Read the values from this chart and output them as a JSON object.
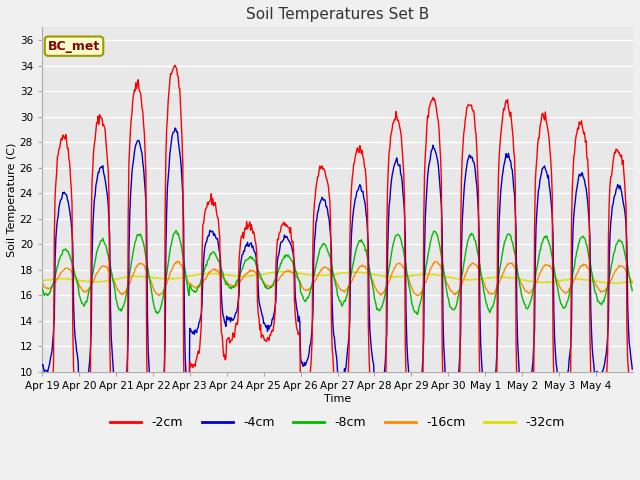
{
  "title": "Soil Temperatures Set B",
  "xlabel": "Time",
  "ylabel": "Soil Temperature (C)",
  "ylim": [
    10,
    37
  ],
  "yticks": [
    10,
    12,
    14,
    16,
    18,
    20,
    22,
    24,
    26,
    28,
    30,
    32,
    34,
    36
  ],
  "annotation": "BC_met",
  "fig_bg": "#f0f0f0",
  "plot_bg": "#e8e8e8",
  "series_colors": {
    "-2cm": "#ff0000",
    "-4cm": "#0000cc",
    "-8cm": "#00bb00",
    "-16cm": "#ff8800",
    "-32cm": "#dddd00"
  },
  "xtick_labels": [
    "Apr 19",
    "Apr 20",
    "Apr 21",
    "Apr 22",
    "Apr 23",
    "Apr 24",
    "Apr 25",
    "Apr 26",
    "Apr 27",
    "Apr 28",
    "Apr 29",
    "Apr 30",
    "May 1",
    "May 2",
    "May 3",
    "May 4"
  ],
  "n_days": 16,
  "samples_per_day": 48,
  "base_temp": 17.0,
  "amp2": [
    11.5,
    13.0,
    15.5,
    17.0,
    6.5,
    4.5,
    4.5,
    9.0,
    10.5,
    13.0,
    14.5,
    14.0,
    14.0,
    13.0,
    12.5,
    10.5
  ],
  "amp4": [
    7.0,
    9.0,
    11.0,
    12.0,
    4.0,
    3.0,
    3.5,
    6.5,
    7.5,
    9.5,
    10.5,
    10.0,
    10.0,
    9.0,
    8.5,
    7.5
  ],
  "amp8": [
    1.8,
    2.5,
    3.0,
    3.2,
    1.5,
    1.2,
    1.3,
    2.2,
    2.5,
    3.0,
    3.2,
    3.0,
    3.0,
    2.8,
    2.8,
    2.5
  ],
  "amp16": [
    0.8,
    1.0,
    1.2,
    1.3,
    0.7,
    0.6,
    0.6,
    0.9,
    1.0,
    1.2,
    1.3,
    1.2,
    1.2,
    1.1,
    1.1,
    1.0
  ],
  "amp32": 0.3,
  "peak_hour_2": 0.58,
  "peak_hour_4": 0.6,
  "peak_hour_8": 0.63,
  "peak_hour_16": 0.67,
  "peak_hour_32": 0.72,
  "sharpness_2": 3.5,
  "title_fontsize": 11,
  "legend_fontsize": 9,
  "tick_fontsize": 7.5
}
